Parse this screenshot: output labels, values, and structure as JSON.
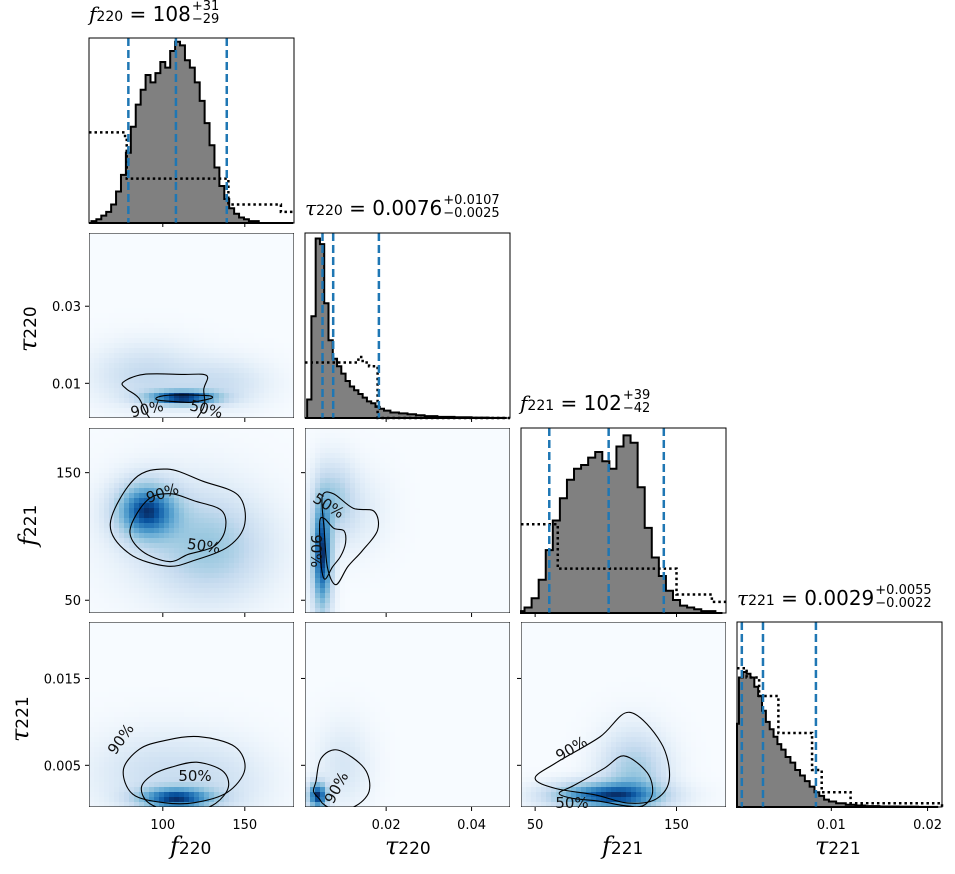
{
  "chart_data": {
    "type": "corner-plot",
    "parameters": [
      {
        "symbol": "f",
        "sub": "220",
        "median": "108",
        "plus": "+31",
        "minus": "−29",
        "range": [
          55,
          180
        ],
        "ticks": [
          100,
          150
        ],
        "tick_labels": [
          "100",
          "150"
        ]
      },
      {
        "symbol": "τ",
        "sub": "220",
        "median": "0.0076",
        "plus": "+0.0107",
        "minus": "−0.0025",
        "range": [
          0.001,
          0.049
        ],
        "ticks": [
          0.02,
          0.04
        ],
        "tick_labels": [
          "0.02",
          "0.04"
        ],
        "yticks": [
          0.01,
          0.03
        ],
        "ytick_labels": [
          "0.01",
          "0.03"
        ]
      },
      {
        "symbol": "f",
        "sub": "221",
        "median": "102",
        "plus": "+39",
        "minus": "−42",
        "range": [
          40,
          185
        ],
        "ticks": [
          50,
          150
        ],
        "tick_labels": [
          "50",
          "150"
        ],
        "yticks": [
          50,
          150
        ],
        "ytick_labels": [
          "50",
          "150"
        ]
      },
      {
        "symbol": "τ",
        "sub": "221",
        "median": "0.0029",
        "plus": "+0.0055",
        "minus": "−0.0022",
        "range": [
          0.0002,
          0.0215
        ],
        "ticks": [
          0.01,
          0.02
        ],
        "tick_labels": [
          "0.01",
          "0.02"
        ],
        "yticks": [
          0.005,
          0.015
        ],
        "ytick_labels": [
          "0.005",
          "0.015"
        ]
      }
    ],
    "quantile_lines": [
      [
        79,
        108,
        139
      ],
      [
        0.0051,
        0.0076,
        0.0183
      ],
      [
        60,
        102,
        141
      ],
      [
        0.0007,
        0.0029,
        0.0084
      ]
    ],
    "contour_labels": {
      "p1_0": [
        "90%",
        "50%"
      ],
      "p2_0": [
        "90%",
        "50%"
      ],
      "p2_1": [
        "50%",
        "90%"
      ],
      "p3_0": [
        "90%",
        "50%"
      ],
      "p3_1": [
        "90%"
      ],
      "p3_2": [
        "90%",
        "50%"
      ]
    },
    "histograms": [
      {
        "x": [
          55,
          58,
          61,
          64,
          67,
          70,
          73,
          76,
          79,
          82,
          85,
          88,
          91,
          94,
          97,
          100,
          103,
          106,
          109,
          112,
          115,
          118,
          121,
          124,
          127,
          130,
          133,
          136,
          139,
          142,
          145,
          148,
          151,
          154,
          157,
          160,
          163,
          166,
          169,
          172,
          175,
          178
        ],
        "values": [
          0.0,
          0.01,
          0.02,
          0.04,
          0.06,
          0.1,
          0.17,
          0.26,
          0.38,
          0.52,
          0.64,
          0.72,
          0.8,
          0.76,
          0.81,
          0.87,
          0.84,
          0.93,
          0.98,
          0.96,
          0.88,
          0.84,
          0.76,
          0.66,
          0.54,
          0.42,
          0.3,
          0.2,
          0.13,
          0.08,
          0.05,
          0.03,
          0.02,
          0.01,
          0.01,
          0.0,
          0.0,
          0.0,
          0.0,
          0.0,
          0.0,
          0.0
        ],
        "prior_x": [
          55,
          70,
          77,
          78,
          120,
          140,
          150,
          165,
          172,
          180
        ],
        "prior_values": [
          0.49,
          0.49,
          0.47,
          0.24,
          0.24,
          0.1,
          0.1,
          0.1,
          0.06,
          0.06
        ]
      },
      {
        "x": [
          0.001,
          0.002,
          0.003,
          0.004,
          0.005,
          0.006,
          0.007,
          0.008,
          0.009,
          0.01,
          0.011,
          0.012,
          0.013,
          0.014,
          0.015,
          0.016,
          0.017,
          0.018,
          0.019,
          0.02,
          0.022,
          0.024,
          0.026,
          0.028,
          0.03,
          0.034,
          0.038,
          0.042,
          0.046
        ],
        "values": [
          0.0,
          0.1,
          0.55,
          0.97,
          0.94,
          0.62,
          0.42,
          0.32,
          0.28,
          0.24,
          0.2,
          0.17,
          0.15,
          0.13,
          0.11,
          0.09,
          0.08,
          0.06,
          0.05,
          0.04,
          0.03,
          0.025,
          0.02,
          0.015,
          0.01,
          0.006,
          0.004,
          0.002,
          0.001
        ],
        "prior_x": [
          0.001,
          0.009,
          0.0135,
          0.0145,
          0.016,
          0.018,
          0.049
        ],
        "prior_values": [
          0.3,
          0.3,
          0.33,
          0.3,
          0.28,
          0.0,
          0.0
        ]
      },
      {
        "x": [
          40,
          45,
          50,
          55,
          60,
          65,
          70,
          75,
          80,
          85,
          90,
          95,
          100,
          105,
          110,
          115,
          120,
          125,
          130,
          135,
          140,
          145,
          150,
          155,
          160,
          165,
          170,
          175,
          180
        ],
        "values": [
          0.01,
          0.03,
          0.08,
          0.18,
          0.34,
          0.5,
          0.62,
          0.72,
          0.78,
          0.8,
          0.84,
          0.87,
          0.82,
          0.78,
          0.9,
          0.96,
          0.92,
          0.68,
          0.46,
          0.3,
          0.2,
          0.12,
          0.07,
          0.04,
          0.03,
          0.02,
          0.01,
          0.01,
          0.0
        ],
        "prior_x": [
          40,
          60,
          66,
          142,
          150,
          158,
          175,
          185
        ],
        "prior_values": [
          0.48,
          0.48,
          0.24,
          0.24,
          0.1,
          0.1,
          0.06,
          0.06
        ]
      },
      {
        "x": [
          0.0002,
          0.0006,
          0.001,
          0.0014,
          0.0018,
          0.0022,
          0.0026,
          0.003,
          0.0034,
          0.0038,
          0.0042,
          0.0046,
          0.005,
          0.0055,
          0.006,
          0.0065,
          0.007,
          0.0075,
          0.008,
          0.0085,
          0.009,
          0.0095,
          0.01,
          0.011,
          0.012,
          0.013,
          0.014,
          0.016,
          0.018,
          0.02
        ],
        "values": [
          0.45,
          0.7,
          0.73,
          0.72,
          0.7,
          0.65,
          0.6,
          0.52,
          0.46,
          0.42,
          0.38,
          0.34,
          0.31,
          0.27,
          0.24,
          0.2,
          0.17,
          0.14,
          0.11,
          0.08,
          0.06,
          0.04,
          0.03,
          0.02,
          0.012,
          0.008,
          0.005,
          0.003,
          0.002,
          0.001
        ],
        "prior_x": [
          0.0002,
          0.0012,
          0.0025,
          0.0045,
          0.008,
          0.009,
          0.012,
          0.0215
        ],
        "prior_values": [
          0.75,
          0.7,
          0.6,
          0.4,
          0.2,
          0.08,
          0.02,
          0.0
        ]
      }
    ],
    "density_blobs": {
      "1_0": [
        [
          112,
          0.0062,
          14,
          0.0012,
          0.9
        ],
        [
          90,
          0.012,
          20,
          0.005,
          0.18
        ],
        [
          135,
          0.01,
          18,
          0.004,
          0.15
        ]
      ],
      "2_0": [
        [
          90,
          120,
          12,
          14,
          0.95
        ],
        [
          130,
          90,
          22,
          25,
          0.3
        ],
        [
          110,
          105,
          28,
          30,
          0.12
        ]
      ],
      "2_1": [
        [
          0.005,
          85,
          0.0015,
          28,
          0.9
        ],
        [
          0.008,
          130,
          0.003,
          18,
          0.25
        ],
        [
          0.012,
          120,
          0.005,
          20,
          0.08
        ]
      ],
      "3_0": [
        [
          108,
          0.0012,
          15,
          0.0008,
          0.9
        ],
        [
          95,
          0.004,
          25,
          0.003,
          0.15
        ],
        [
          135,
          0.003,
          20,
          0.003,
          0.12
        ]
      ],
      "3_1": [
        [
          0.004,
          0.0015,
          0.0015,
          0.001,
          0.9
        ],
        [
          0.01,
          0.005,
          0.004,
          0.003,
          0.1
        ]
      ],
      "3_2": [
        [
          100,
          0.0015,
          25,
          0.001,
          0.9
        ],
        [
          120,
          0.004,
          15,
          0.003,
          0.35
        ]
      ]
    },
    "contours": {
      "1_0": {
        "levels": [
          {
            "center": [
              100,
              0.0085
            ],
            "rx": [
              25,
              33,
              40,
              38,
              30,
              22,
              18,
              25,
              28,
              30
            ],
            "ry": [
              0.007,
              0.006,
              0.004,
              0.004,
              0.003,
              0.003,
              0.004,
              0.008,
              0.013,
              0.009
            ]
          },
          {
            "center": [
              112,
              0.0062
            ],
            "rx": [
              18,
              20,
              18,
              15,
              14,
              16,
              18,
              15,
              12,
              14
            ],
            "ry": [
              0.0012,
              0.001,
              0.0008,
              0.0008,
              0.001,
              0.0012,
              0.001,
              0.001,
              0.0012,
              0.0012
            ]
          }
        ]
      },
      "2_0": {
        "levels": [
          {
            "center": [
              112,
              110
            ],
            "rx": [
              38,
              42,
              40,
              30,
              36,
              44,
              40,
              30,
              25,
              35
            ],
            "ry": [
              40,
              38,
              35,
              45,
              60,
              55,
              40,
              35,
              30,
              30
            ]
          },
          {
            "center": [
              110,
              105
            ],
            "rx": [
              28,
              32,
              30,
              18,
              24,
              30,
              28,
              20,
              18,
              26
            ],
            "ry": [
              28,
              26,
              24,
              30,
              40,
              38,
              28,
              26,
              20,
              22
            ]
          }
        ]
      },
      "2_1": {
        "levels": [
          {
            "center": [
              0.0095,
              105
            ],
            "rx": [
              0.0085,
              0.0095,
              0.009,
              0.006,
              0.0055,
              0.004,
              0.004,
              0.004,
              0.005,
              0.006
            ],
            "ry": [
              30,
              25,
              18,
              30,
              45,
              50,
              50,
              45,
              30,
              28
            ]
          },
          {
            "center": [
              0.0065,
              95
            ],
            "rx": [
              0.004,
              0.0045,
              0.004,
              0.003,
              0.0025,
              0.002,
              0.002,
              0.0025,
              0.003,
              0.0035
            ],
            "ry": [
              20,
              16,
              12,
              20,
              30,
              35,
              35,
              30,
              20,
              18
            ]
          }
        ]
      },
      "3_0": {
        "levels": [
          {
            "center": [
              110,
              0.0045
            ],
            "rx": [
              40,
              42,
              38,
              30,
              30,
              34,
              35,
              30,
              30,
              36
            ],
            "ry": [
              0.005,
              0.0045,
              0.004,
              0.0035,
              0.004,
              0.005,
              0.0048,
              0.004,
              0.004,
              0.0045
            ]
          },
          {
            "center": [
              112,
              0.0025
            ],
            "rx": [
              28,
              30,
              28,
              22,
              22,
              25,
              26,
              22,
              20,
              25
            ],
            "ry": [
              0.0035,
              0.0032,
              0.003,
              0.0024,
              0.0025,
              0.0028,
              0.003,
              0.003,
              0.003,
              0.0032
            ]
          }
        ]
      },
      "3_1": {
        "levels": [
          {
            "center": [
              0.006,
              0.002
            ],
            "rx": [
              0.01,
              0.011,
              0.009,
              0.004,
              0.003,
              0.003,
              0.002,
              0.0025,
              0.004,
              0.008
            ],
            "ry": [
              0.0035,
              0.0045,
              0.005,
              0.004,
              0.002,
              0.0015,
              0.0015,
              0.0015,
              0.002,
              0.003
            ]
          }
        ]
      },
      "3_2": {
        "levels": [
          {
            "center": [
              105,
              0.0035
            ],
            "rx": [
              40,
              42,
              38,
              30,
              50,
              55,
              50,
              40,
              35,
              38
            ],
            "ry": [
              0.006,
              0.007,
              0.008,
              0.005,
              0.003,
              0.002,
              0.002,
              0.002,
              0.003,
              0.004
            ]
          },
          {
            "center": [
              105,
              0.0018
            ],
            "rx": [
              28,
              30,
              26,
              20,
              34,
              38,
              36,
              28,
              24,
              26
            ],
            "ry": [
              0.0035,
              0.004,
              0.0045,
              0.003,
              0.0015,
              0.001,
              0.001,
              0.001,
              0.0015,
              0.0025
            ]
          }
        ]
      }
    }
  }
}
